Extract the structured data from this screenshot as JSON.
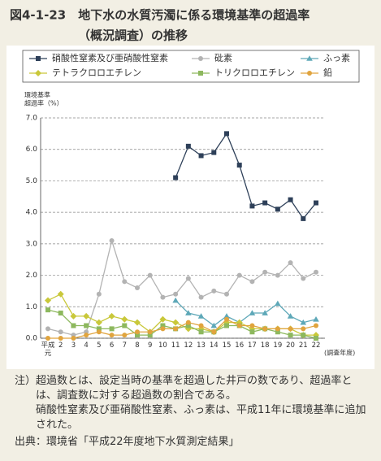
{
  "chart_data": {
    "type": "line",
    "title": [
      "図4-1-23　地下水の水質汚濁に係る環境基準の超過率",
      "（概況調査）の推移"
    ],
    "y_label": [
      "環境基準",
      "超過率（%）"
    ],
    "x_label": "(調査年度)",
    "categories": [
      "平成元",
      "2",
      "3",
      "4",
      "5",
      "6",
      "7",
      "8",
      "9",
      "10",
      "11",
      "12",
      "13",
      "14",
      "15",
      "16",
      "17",
      "18",
      "19",
      "20",
      "21",
      "22"
    ],
    "ylim": [
      0,
      7
    ],
    "yticks": [
      {
        "value": 0,
        "label": "0.0"
      },
      {
        "value": 1,
        "label": "1.0"
      },
      {
        "value": 2,
        "label": "2.0"
      },
      {
        "value": 3,
        "label": "3.0"
      },
      {
        "value": 4,
        "label": "4.0"
      },
      {
        "value": 5,
        "label": "5.0"
      },
      {
        "value": 6,
        "label": "6.0"
      },
      {
        "value": 7,
        "label": "7.0"
      }
    ],
    "grid": true,
    "series": [
      {
        "name": "硝酸性窒素及び亜硝酸性窒素",
        "color": "#2e4059",
        "marker": "square",
        "values": [
          null,
          null,
          null,
          null,
          null,
          null,
          null,
          null,
          null,
          null,
          5.1,
          6.1,
          5.8,
          5.9,
          6.5,
          5.5,
          4.2,
          4.3,
          4.1,
          4.4,
          3.8,
          4.3
        ]
      },
      {
        "name": "砒素",
        "color": "#b3b3b3",
        "marker": "circle",
        "values": [
          0.3,
          0.2,
          0.1,
          0.2,
          1.4,
          3.1,
          1.8,
          1.6,
          2.0,
          1.3,
          1.4,
          1.9,
          1.3,
          1.5,
          1.4,
          2.0,
          1.8,
          2.1,
          2.0,
          2.4,
          1.9,
          2.1
        ]
      },
      {
        "name": "ふっ素",
        "color": "#5ea8b8",
        "marker": "triangle",
        "values": [
          null,
          null,
          null,
          null,
          null,
          null,
          null,
          null,
          null,
          null,
          1.2,
          0.8,
          0.7,
          0.4,
          0.7,
          0.5,
          0.8,
          0.8,
          1.1,
          0.7,
          0.5,
          0.6
        ]
      },
      {
        "name": "テトラクロロエチレン",
        "color": "#c9c83a",
        "marker": "diamond",
        "values": [
          1.2,
          1.4,
          0.7,
          0.7,
          0.5,
          0.7,
          0.6,
          0.5,
          0.2,
          0.6,
          0.5,
          0.3,
          0.3,
          0.2,
          0.5,
          0.5,
          0.3,
          0.3,
          0.3,
          0.3,
          0.1,
          0.1
        ]
      },
      {
        "name": "トリクロロエチレン",
        "color": "#8db85e",
        "marker": "square",
        "values": [
          0.9,
          0.8,
          0.4,
          0.4,
          0.3,
          0.3,
          0.4,
          0.1,
          0.1,
          0.4,
          0.3,
          0.4,
          0.2,
          0.2,
          0.4,
          0.4,
          0.2,
          0.3,
          0.2,
          0.1,
          0.1,
          0.0
        ]
      },
      {
        "name": "鉛",
        "color": "#e0a43e",
        "marker": "circle",
        "values": [
          0.0,
          0.0,
          0.0,
          0.1,
          0.2,
          0.1,
          0.1,
          0.2,
          0.2,
          0.3,
          0.3,
          0.5,
          0.4,
          0.2,
          0.6,
          0.4,
          0.4,
          0.3,
          0.3,
          0.3,
          0.3,
          0.4
        ]
      }
    ]
  },
  "notes": {
    "label": "注）",
    "lines": [
      "超過数とは、設定当時の基準を超過した井戸の数であり、超過率とは、調査数に対する超過数の割合である。",
      "硝酸性窒素及び亜硝酸性窒素、ふっ素は、平成11年に環境基準に追加された。"
    ]
  },
  "source": "出典：環境省「平成22年度地下水質測定結果」"
}
